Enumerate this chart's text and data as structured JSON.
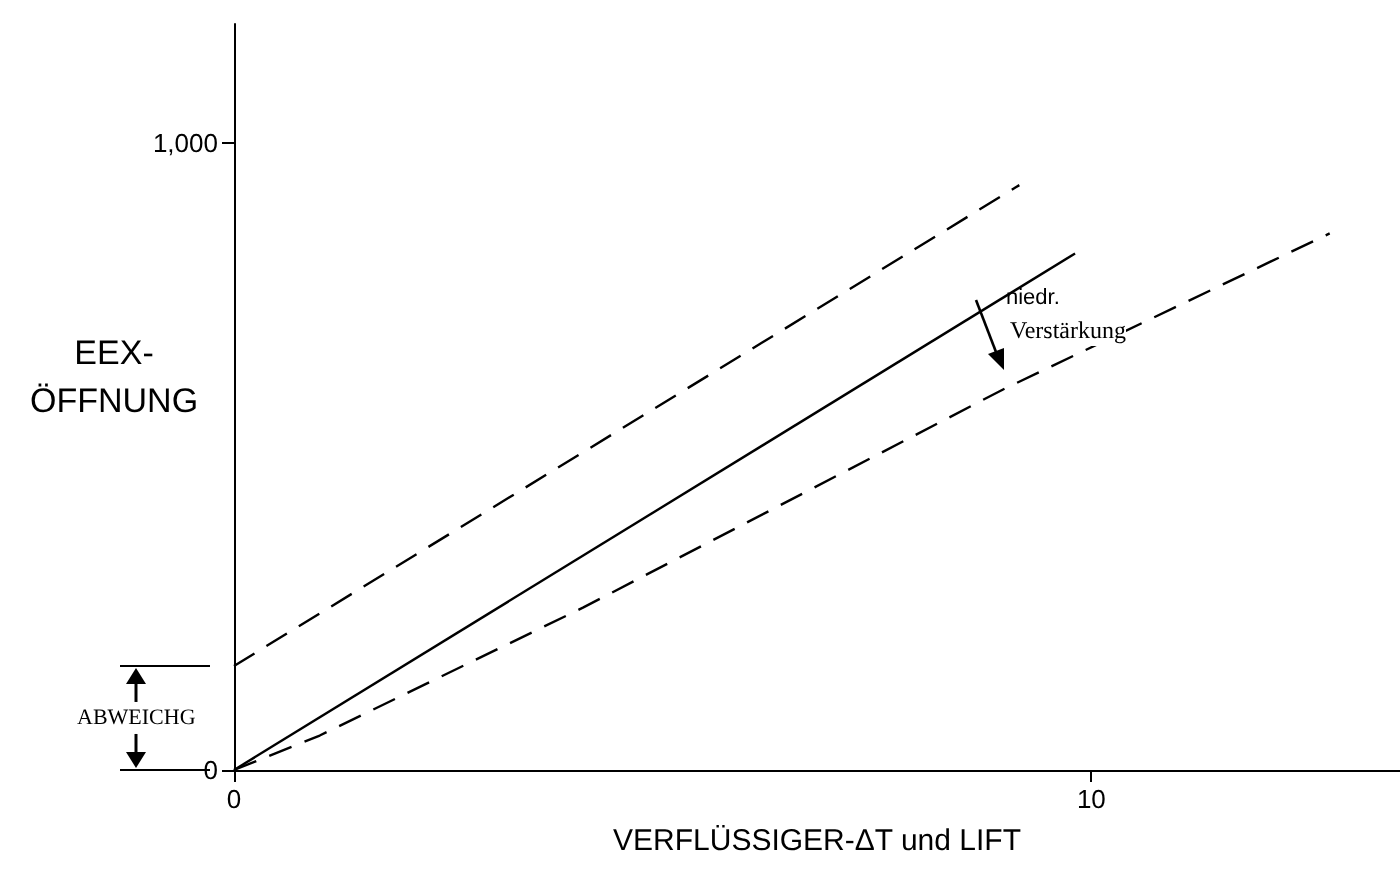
{
  "chart_data": {
    "type": "line",
    "xlabel": "VERFLÜSSIGER-ΔT und LIFT",
    "ylabel": "EEX-\nÖFFNUNG",
    "xlim": [
      0,
      13.6
    ],
    "ylim": [
      0,
      1190
    ],
    "xticks": [
      0,
      10
    ],
    "yticks": [
      0,
      {
        "value": 1000,
        "label": "1,000"
      }
    ],
    "grid": false,
    "marker": "none",
    "series": [
      {
        "color": "#000000",
        "line_style": "dashed",
        "x": [
          0,
          9.16
        ],
        "values": [
          166,
          933
        ]
      },
      {
        "color": "#000000",
        "line_style": "solid",
        "x": [
          0,
          9.81
        ],
        "values": [
          0,
          824
        ]
      },
      {
        "color": "#000000",
        "line_style": "dashed",
        "x": [
          0,
          1,
          4.07,
          8.97,
          12.78
        ],
        "values": [
          0,
          55,
          259,
          607,
          856
        ]
      }
    ],
    "annotations": [
      "niedr. Verstärkung",
      "ABWEICHG"
    ]
  }
}
